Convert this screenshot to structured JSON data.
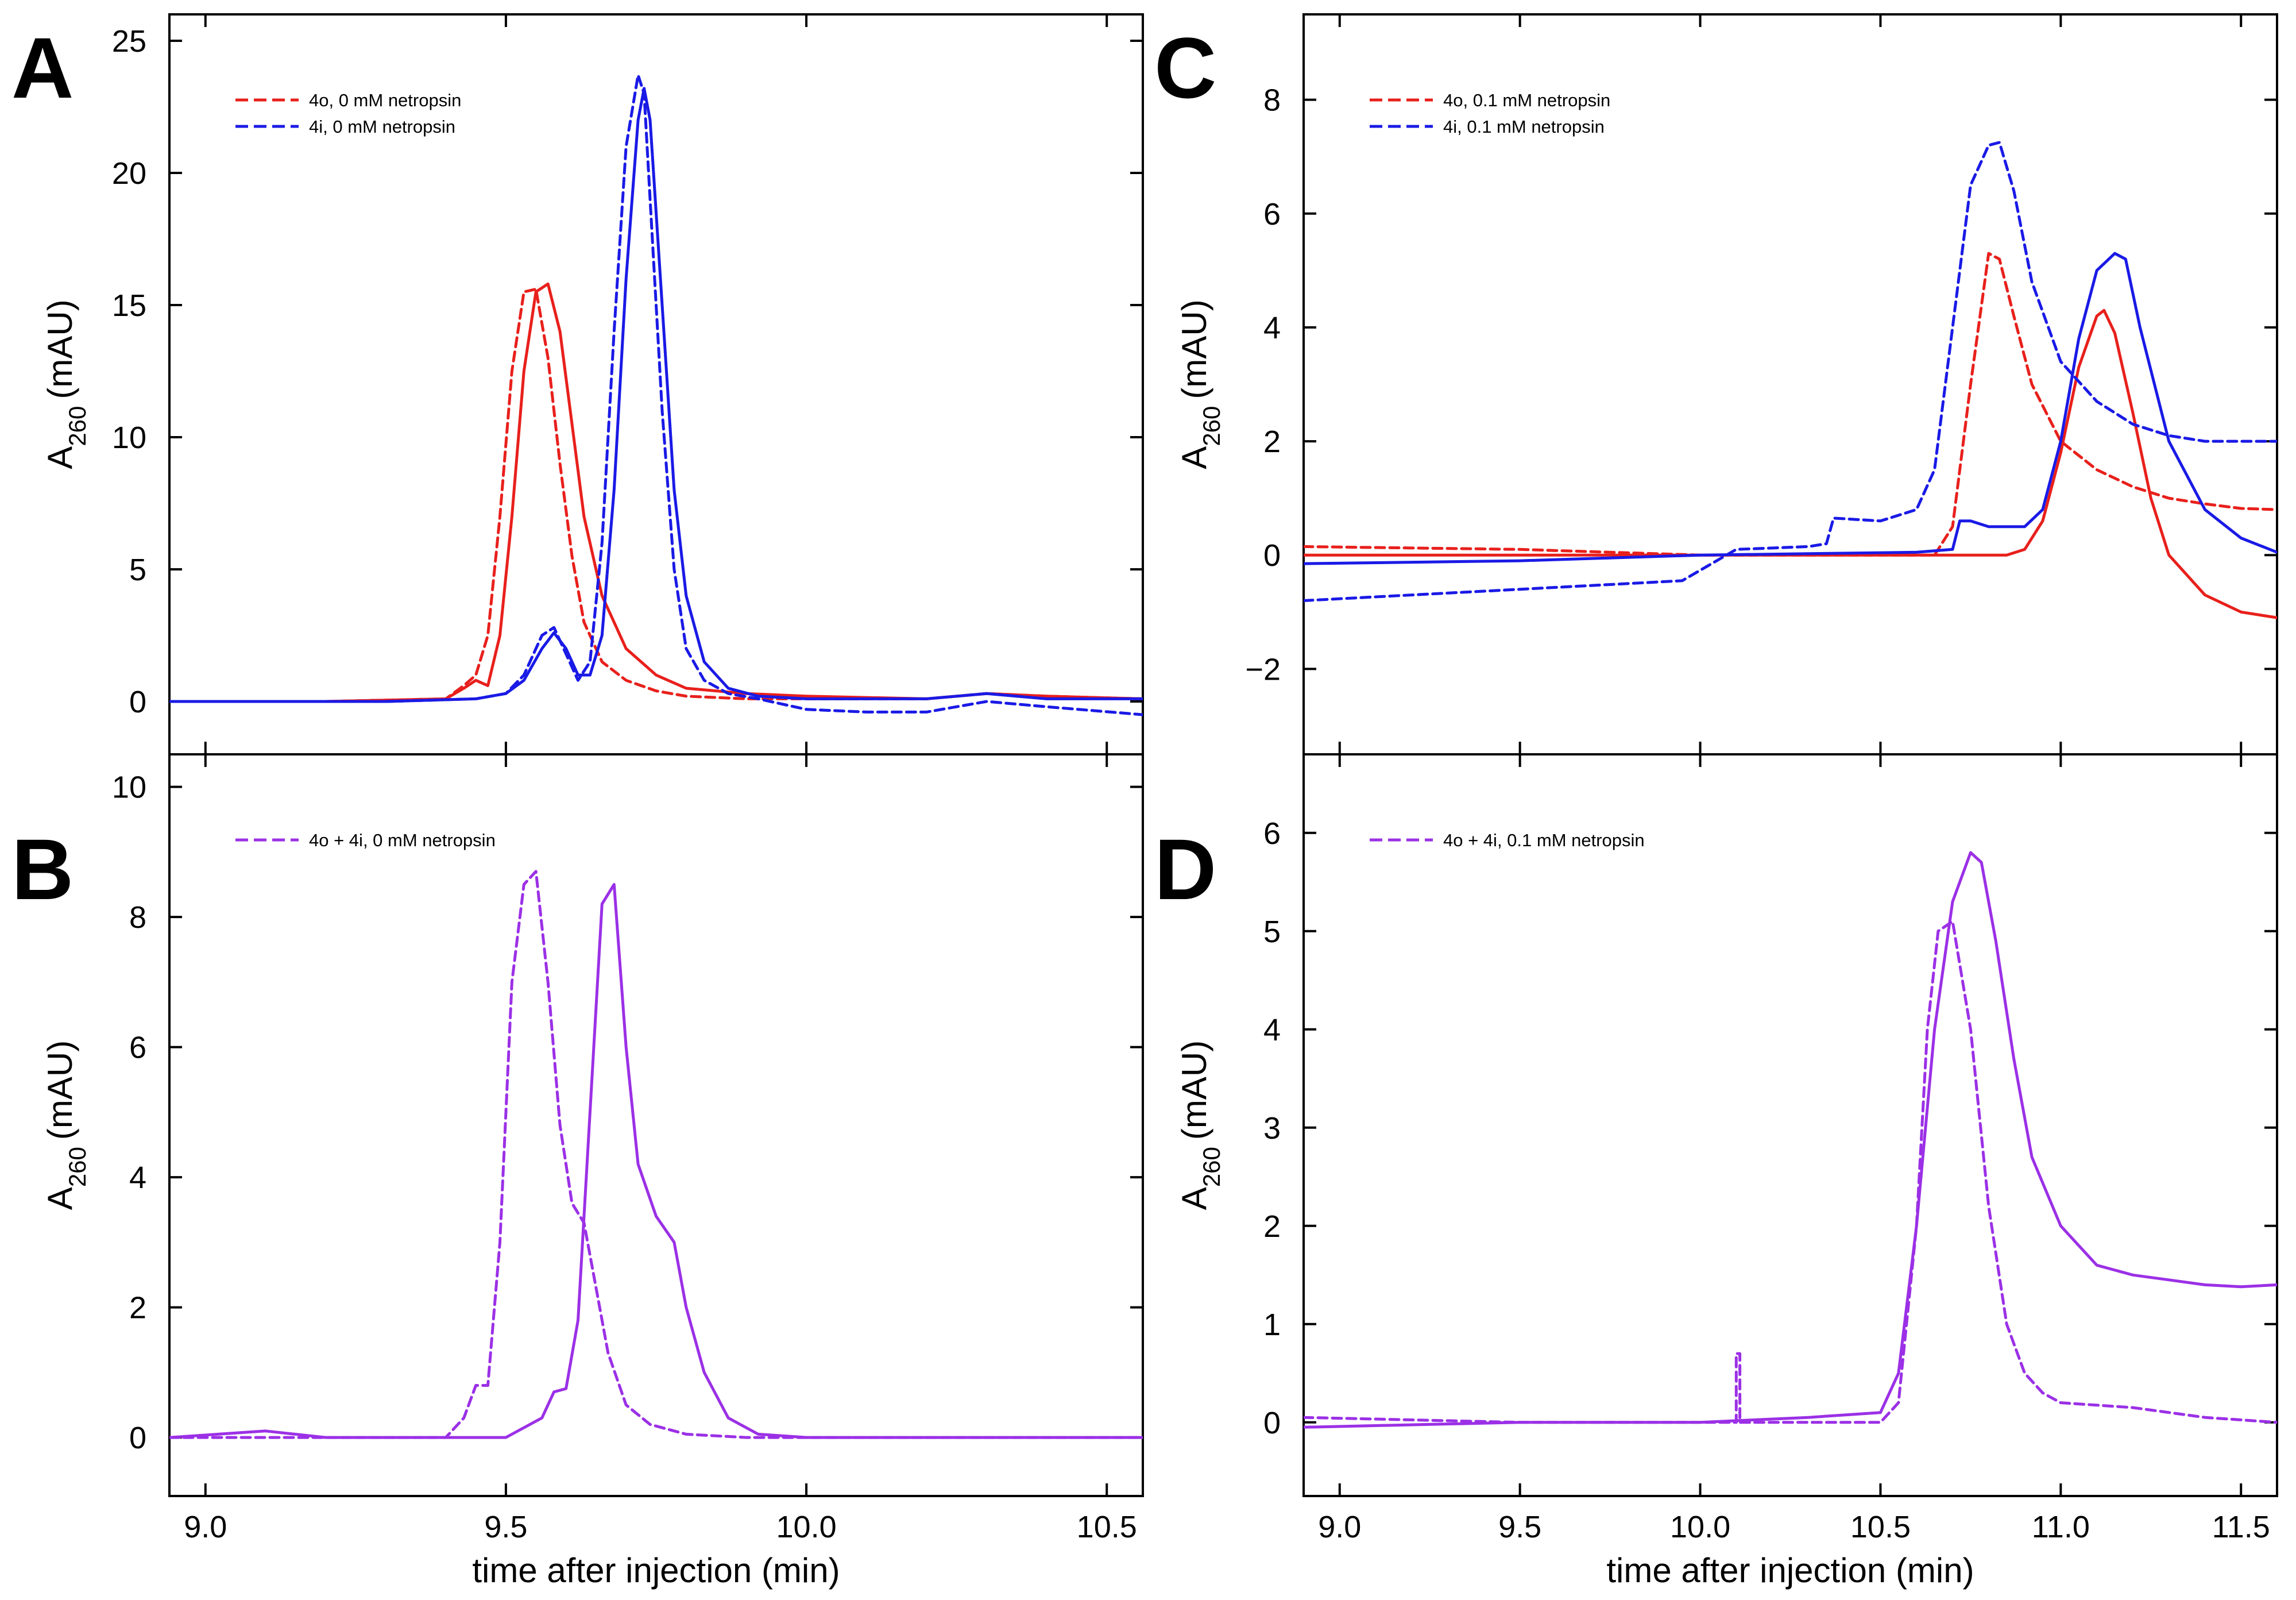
{
  "figure": {
    "xlabel": "time after injection (min)",
    "ylabel_main": "A",
    "ylabel_sub": "260",
    "ylabel_unit": "(mAU)"
  },
  "colors": {
    "red": "#e8201c",
    "blue": "#1a1ae6",
    "purple": "#9b30e6"
  },
  "chart_data": [
    {
      "panel": "A",
      "type": "line",
      "xlim": [
        8.94,
        10.56
      ],
      "ylim": [
        -2,
        26
      ],
      "xticks": [
        9.0,
        9.5,
        10.0,
        10.5
      ],
      "xtick_labels": [
        "9.0",
        "9.5",
        "10.0",
        "10.5"
      ],
      "yticks": [
        0,
        5,
        10,
        15,
        20,
        25
      ],
      "legend_position": "top-left",
      "series": [
        {
          "name": "4o, 0 mM netropsin",
          "color": "red",
          "dash": "solid",
          "show_in_legend": false,
          "x": [
            8.94,
            9.2,
            9.4,
            9.43,
            9.45,
            9.47,
            9.49,
            9.51,
            9.53,
            9.55,
            9.57,
            9.59,
            9.61,
            9.63,
            9.66,
            9.7,
            9.75,
            9.8,
            9.9,
            10.0,
            10.2,
            10.3,
            10.4,
            10.56
          ],
          "y": [
            0,
            0,
            0.1,
            0.5,
            0.8,
            0.6,
            2.5,
            7,
            12.5,
            15.5,
            15.8,
            14,
            10.5,
            7,
            4,
            2,
            1,
            0.5,
            0.3,
            0.2,
            0.1,
            0.3,
            0.2,
            0.1
          ]
        },
        {
          "name": "4o, 0 mM netropsin",
          "color": "red",
          "dash": "dashed",
          "show_in_legend": true,
          "x": [
            8.94,
            9.2,
            9.4,
            9.43,
            9.45,
            9.47,
            9.49,
            9.51,
            9.53,
            9.55,
            9.57,
            9.59,
            9.61,
            9.63,
            9.66,
            9.7,
            9.75,
            9.8,
            9.9,
            10.0,
            10.2,
            10.3,
            10.4,
            10.56
          ],
          "y": [
            0,
            0,
            0.1,
            0.6,
            1,
            2.5,
            7,
            12.5,
            15.5,
            15.6,
            13,
            9,
            5.5,
            3,
            1.5,
            0.8,
            0.4,
            0.2,
            0.1,
            0.1,
            0.1,
            0.3,
            0.2,
            0.1
          ]
        },
        {
          "name": "4i, 0 mM netropsin",
          "color": "blue",
          "dash": "solid",
          "show_in_legend": false,
          "x": [
            8.94,
            9.3,
            9.45,
            9.5,
            9.53,
            9.56,
            9.58,
            9.6,
            9.62,
            9.64,
            9.66,
            9.68,
            9.7,
            9.72,
            9.73,
            9.74,
            9.76,
            9.78,
            9.8,
            9.83,
            9.87,
            9.92,
            10.0,
            10.2,
            10.3,
            10.4,
            10.56
          ],
          "y": [
            0,
            0,
            0.1,
            0.3,
            0.8,
            2,
            2.6,
            2,
            1,
            1,
            2.5,
            8,
            16,
            22,
            23.2,
            22,
            15,
            8,
            4,
            1.5,
            0.5,
            0.2,
            0.1,
            0.1,
            0.3,
            0.1,
            0.1
          ]
        },
        {
          "name": "4i, 0 mM netropsin",
          "color": "blue",
          "dash": "dashed",
          "show_in_legend": true,
          "x": [
            8.94,
            9.3,
            9.45,
            9.5,
            9.53,
            9.56,
            9.58,
            9.6,
            9.62,
            9.64,
            9.66,
            9.68,
            9.7,
            9.72,
            9.73,
            9.74,
            9.76,
            9.78,
            9.8,
            9.83,
            9.87,
            9.92,
            10.0,
            10.1,
            10.2,
            10.3,
            10.4,
            10.56
          ],
          "y": [
            0,
            0,
            0.1,
            0.3,
            1,
            2.5,
            2.8,
            1.8,
            0.8,
            1.5,
            6,
            14,
            21,
            23.7,
            23,
            19,
            11,
            5,
            2,
            0.8,
            0.3,
            0.1,
            -0.3,
            -0.4,
            -0.4,
            0,
            -0.2,
            -0.5
          ]
        }
      ]
    },
    {
      "panel": "B",
      "type": "line",
      "xlim": [
        8.94,
        10.56
      ],
      "ylim": [
        -0.9,
        10.5
      ],
      "xticks": [
        9.0,
        9.5,
        10.0,
        10.5
      ],
      "xtick_labels": [
        "9.0",
        "9.5",
        "10.0",
        "10.5"
      ],
      "yticks": [
        0,
        2,
        4,
        6,
        8,
        10
      ],
      "legend_position": "top-left",
      "series": [
        {
          "name": "4o + 4i, 0 mM netropsin",
          "color": "purple",
          "dash": "dashed",
          "show_in_legend": true,
          "x": [
            8.94,
            9.2,
            9.4,
            9.43,
            9.45,
            9.47,
            9.49,
            9.51,
            9.53,
            9.55,
            9.57,
            9.59,
            9.61,
            9.63,
            9.65,
            9.67,
            9.7,
            9.74,
            9.8,
            9.9,
            10.0,
            10.2,
            10.4,
            10.56
          ],
          "y": [
            0,
            0,
            0,
            0.3,
            0.8,
            0.8,
            3,
            7,
            8.5,
            8.7,
            7,
            4.8,
            3.6,
            3.3,
            2.3,
            1.3,
            0.5,
            0.2,
            0.05,
            0,
            0,
            0,
            0,
            0
          ]
        },
        {
          "name": "4o + 4i, 0 mM netropsin",
          "color": "purple",
          "dash": "solid",
          "show_in_legend": false,
          "x": [
            8.94,
            9.1,
            9.2,
            9.5,
            9.56,
            9.58,
            9.6,
            9.62,
            9.64,
            9.66,
            9.68,
            9.7,
            9.72,
            9.75,
            9.78,
            9.8,
            9.83,
            9.87,
            9.92,
            10.0,
            10.3,
            10.56
          ],
          "y": [
            0,
            0.1,
            0,
            0,
            0.3,
            0.7,
            0.75,
            1.8,
            5,
            8.2,
            8.5,
            6,
            4.2,
            3.4,
            3,
            2,
            1,
            0.3,
            0.05,
            0,
            0,
            0
          ]
        }
      ]
    },
    {
      "panel": "C",
      "type": "line",
      "xlim": [
        8.9,
        11.6
      ],
      "ylim": [
        -3.5,
        9.5
      ],
      "xticks": [
        9.0,
        9.5,
        10.0,
        10.5,
        11.0,
        11.5
      ],
      "xtick_labels": [
        "9.0",
        "9.5",
        "10.0",
        "10.5",
        "11.0",
        "11.5"
      ],
      "yticks": [
        -2,
        0,
        2,
        4,
        6,
        8
      ],
      "ytick_labels": [
        "−2",
        "0",
        "2",
        "4",
        "6",
        "8"
      ],
      "legend_position": "top-left",
      "series": [
        {
          "name": "4o, 0.1 mM netropsin",
          "color": "red",
          "dash": "solid",
          "show_in_legend": false,
          "x": [
            8.9,
            9.5,
            10.0,
            10.5,
            10.85,
            10.9,
            10.95,
            11.0,
            11.05,
            11.1,
            11.12,
            11.15,
            11.2,
            11.25,
            11.3,
            11.4,
            11.5,
            11.6
          ],
          "y": [
            0,
            0,
            0,
            0,
            0,
            0.1,
            0.6,
            1.8,
            3.3,
            4.2,
            4.3,
            3.9,
            2.5,
            1,
            0,
            -0.7,
            -1,
            -1.1
          ]
        },
        {
          "name": "4o, 0.1 mM netropsin",
          "color": "red",
          "dash": "dashed",
          "show_in_legend": true,
          "x": [
            8.9,
            9.5,
            10.0,
            10.5,
            10.65,
            10.7,
            10.75,
            10.8,
            10.83,
            10.87,
            10.92,
            11.0,
            11.1,
            11.2,
            11.3,
            11.4,
            11.5,
            11.6
          ],
          "y": [
            0.15,
            0.1,
            0,
            0,
            0,
            0.5,
            3,
            5.3,
            5.2,
            4.2,
            3,
            2,
            1.5,
            1.2,
            1,
            0.9,
            0.82,
            0.8
          ]
        },
        {
          "name": "4i, 0.1 mM netropsin",
          "color": "blue",
          "dash": "solid",
          "show_in_legend": false,
          "x": [
            8.9,
            9.5,
            10.0,
            10.6,
            10.7,
            10.72,
            10.75,
            10.8,
            10.9,
            10.95,
            11.0,
            11.05,
            11.1,
            11.15,
            11.18,
            11.22,
            11.3,
            11.4,
            11.5,
            11.6
          ],
          "y": [
            -0.15,
            -0.1,
            0,
            0.05,
            0.1,
            0.6,
            0.6,
            0.5,
            0.5,
            0.8,
            2,
            3.8,
            5,
            5.3,
            5.2,
            4,
            2,
            0.8,
            0.3,
            0.05
          ]
        },
        {
          "name": "4i, 0.1 mM netropsin",
          "color": "blue",
          "dash": "dashed",
          "show_in_legend": true,
          "x": [
            8.9,
            9.5,
            9.95,
            10.1,
            10.3,
            10.35,
            10.37,
            10.5,
            10.6,
            10.65,
            10.7,
            10.75,
            10.8,
            10.83,
            10.87,
            10.92,
            11.0,
            11.1,
            11.2,
            11.3,
            11.4,
            11.6
          ],
          "y": [
            -0.8,
            -0.6,
            -0.45,
            0.1,
            0.15,
            0.2,
            0.65,
            0.6,
            0.8,
            1.5,
            4,
            6.5,
            7.2,
            7.25,
            6.4,
            4.8,
            3.4,
            2.7,
            2.3,
            2.1,
            2,
            2
          ]
        }
      ]
    },
    {
      "panel": "D",
      "type": "line",
      "xlim": [
        8.9,
        11.6
      ],
      "ylim": [
        -0.75,
        6.8
      ],
      "xticks": [
        9.0,
        9.5,
        10.0,
        10.5,
        11.0,
        11.5
      ],
      "xtick_labels": [
        "9.0",
        "9.5",
        "10.0",
        "10.5",
        "11.0",
        "11.5"
      ],
      "yticks": [
        0,
        1,
        2,
        3,
        4,
        5,
        6
      ],
      "legend_position": "top-left",
      "series": [
        {
          "name": "4o + 4i, 0.1 mM netropsin",
          "color": "purple",
          "dash": "dashed",
          "show_in_legend": true,
          "x": [
            8.9,
            9.5,
            10.0,
            10.1,
            10.1,
            10.11,
            10.11,
            10.3,
            10.5,
            10.55,
            10.6,
            10.63,
            10.66,
            10.7,
            10.75,
            10.8,
            10.85,
            10.9,
            10.95,
            11.0,
            11.2,
            11.4,
            11.6
          ],
          "y": [
            0.05,
            0,
            0,
            0,
            0.7,
            0.7,
            0,
            0,
            0,
            0.2,
            2,
            4,
            5,
            5.1,
            4,
            2.2,
            1,
            0.5,
            0.3,
            0.2,
            0.15,
            0.05,
            0
          ]
        },
        {
          "name": "4o + 4i, 0.1 mM netropsin",
          "color": "purple",
          "dash": "solid",
          "show_in_legend": false,
          "x": [
            8.9,
            9.5,
            10.0,
            10.3,
            10.5,
            10.55,
            10.6,
            10.65,
            10.7,
            10.75,
            10.78,
            10.82,
            10.87,
            10.92,
            11.0,
            11.1,
            11.2,
            11.3,
            11.4,
            11.5,
            11.6
          ],
          "y": [
            -0.05,
            0,
            0,
            0.05,
            0.1,
            0.5,
            2,
            4,
            5.3,
            5.8,
            5.7,
            4.9,
            3.7,
            2.7,
            2,
            1.6,
            1.5,
            1.45,
            1.4,
            1.38,
            1.4
          ]
        }
      ]
    }
  ]
}
